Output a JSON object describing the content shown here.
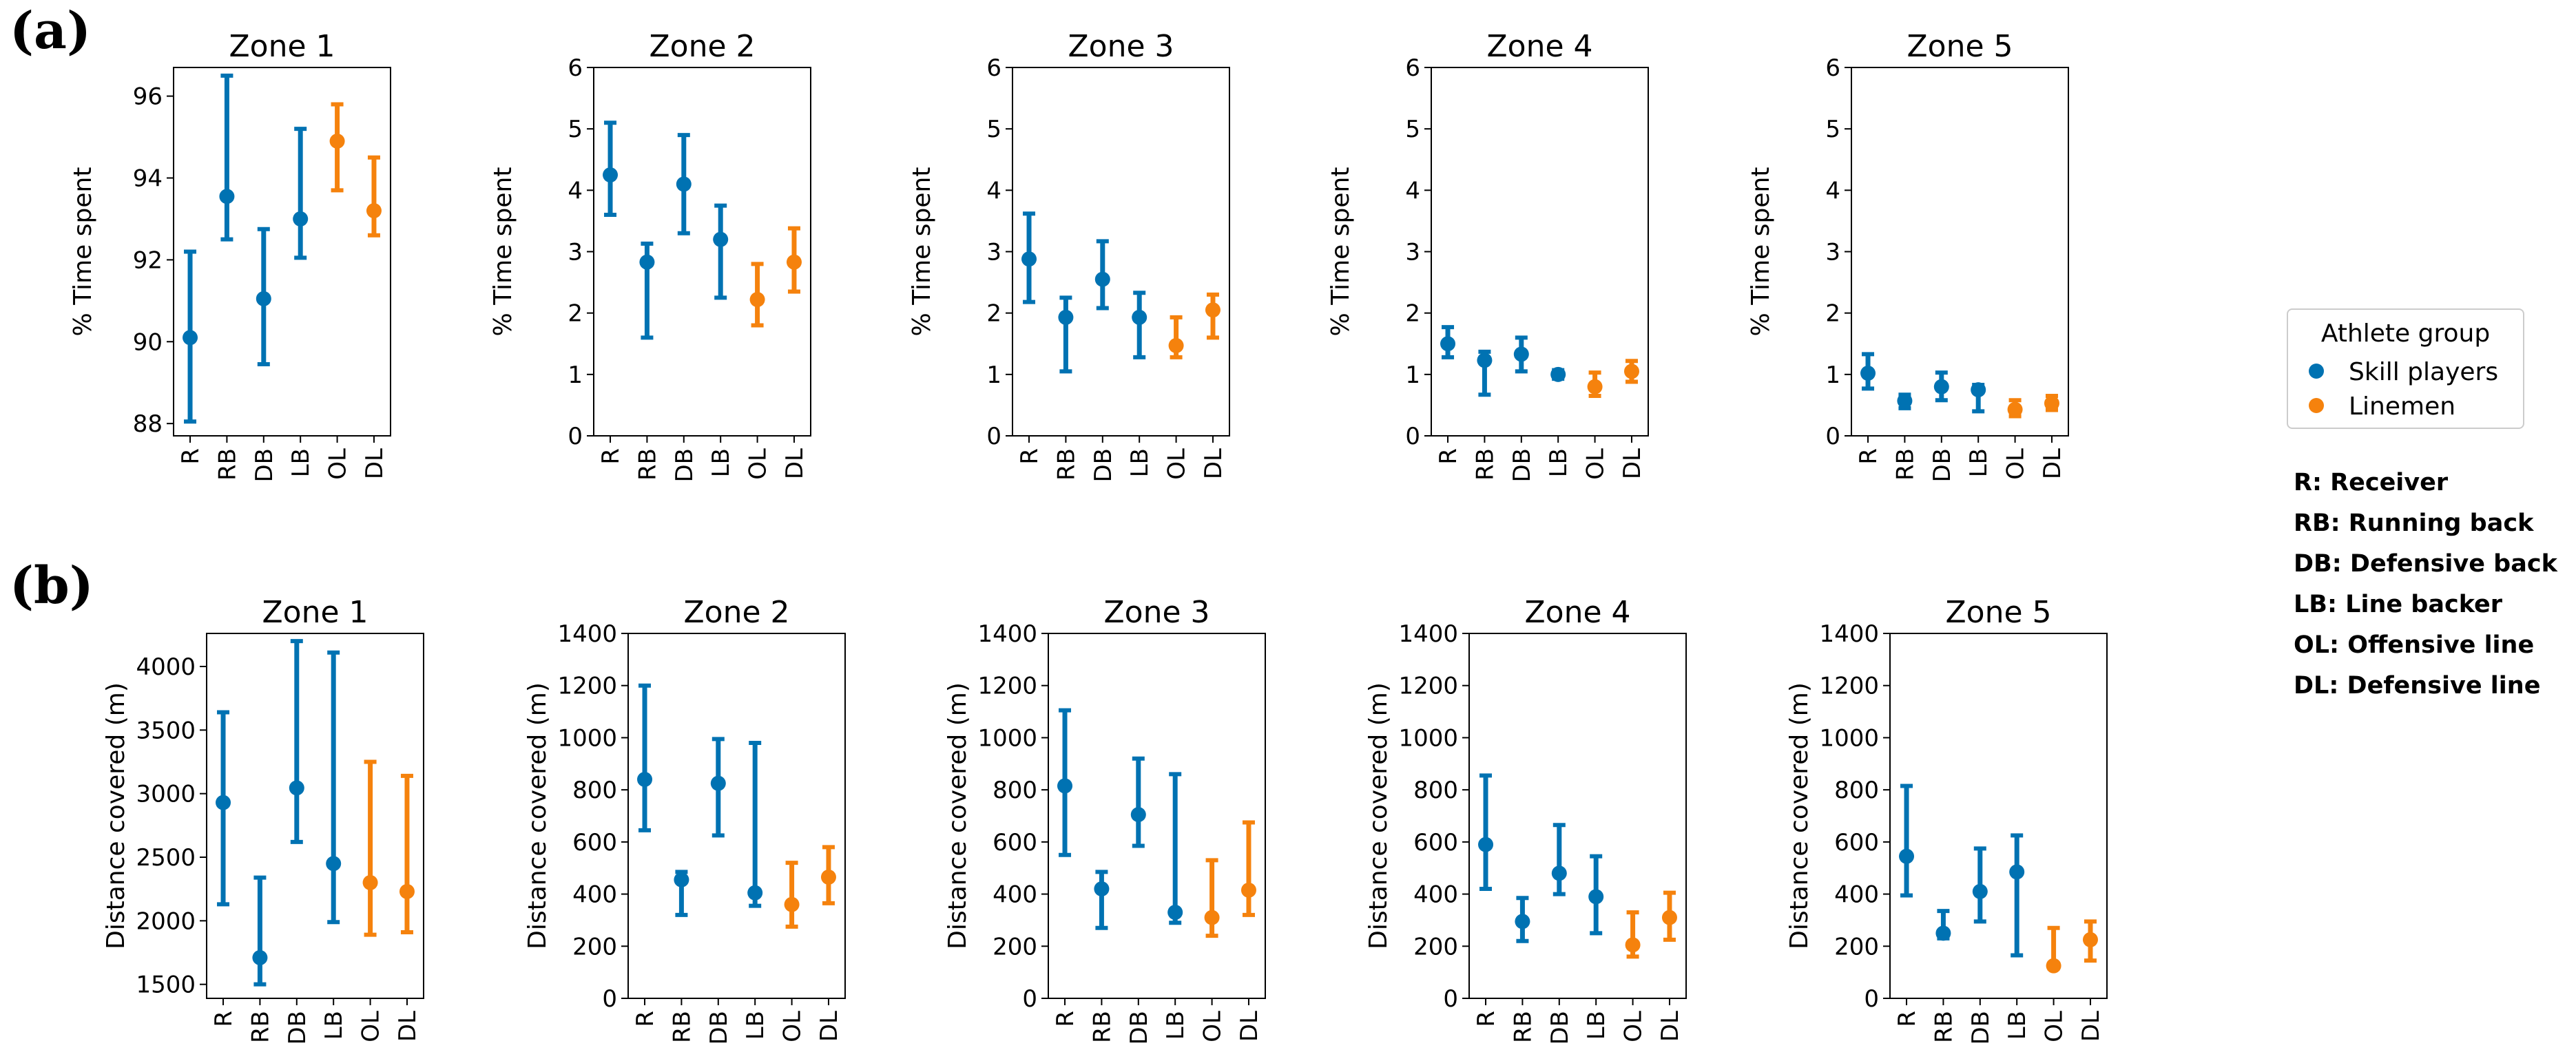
{
  "panel_labels": {
    "a": "(a)",
    "b": "(b)"
  },
  "legend": {
    "title": "Athlete group",
    "items": [
      {
        "label": "Skill players",
        "color": "#0072b2"
      },
      {
        "label": "Linemen",
        "color": "#f5820d"
      }
    ]
  },
  "abbreviations": [
    "R: Receiver",
    "RB: Running back",
    "DB: Defensive back",
    "LB: Line backer",
    "OL: Offensive line",
    "DL: Defensive line"
  ],
  "colors": {
    "skill": "#0072b2",
    "linemen": "#f5820d"
  },
  "chart_data": [
    {
      "type": "scatter",
      "title": "Zone 1",
      "ylabel": "% Time spent",
      "categories": [
        "R",
        "RB",
        "DB",
        "LB",
        "OL",
        "DL"
      ],
      "groups": [
        "skill",
        "skill",
        "skill",
        "skill",
        "linemen",
        "linemen"
      ],
      "values": [
        90.1,
        93.55,
        91.05,
        93.0,
        94.9,
        93.2
      ],
      "lower": [
        88.05,
        92.5,
        89.45,
        92.05,
        93.7,
        92.6
      ],
      "upper": [
        92.2,
        96.5,
        92.75,
        95.2,
        95.8,
        94.5
      ],
      "ylim": [
        87.7,
        96.7
      ],
      "yticks": [
        88,
        90,
        92,
        94,
        96
      ]
    },
    {
      "type": "scatter",
      "title": "Zone 2",
      "ylabel": "% Time spent",
      "categories": [
        "R",
        "RB",
        "DB",
        "LB",
        "OL",
        "DL"
      ],
      "groups": [
        "skill",
        "skill",
        "skill",
        "skill",
        "linemen",
        "linemen"
      ],
      "values": [
        4.25,
        2.83,
        4.1,
        3.2,
        2.22,
        2.83
      ],
      "lower": [
        3.6,
        1.6,
        3.3,
        2.25,
        1.8,
        2.35
      ],
      "upper": [
        5.1,
        3.13,
        4.9,
        3.75,
        2.8,
        3.38
      ],
      "ylim": [
        0,
        6
      ],
      "yticks": [
        0,
        1,
        2,
        3,
        4,
        5,
        6
      ]
    },
    {
      "type": "scatter",
      "title": "Zone 3",
      "ylabel": "% Time spent",
      "categories": [
        "R",
        "RB",
        "DB",
        "LB",
        "OL",
        "DL"
      ],
      "groups": [
        "skill",
        "skill",
        "skill",
        "skill",
        "linemen",
        "linemen"
      ],
      "values": [
        2.88,
        1.93,
        2.55,
        1.93,
        1.47,
        2.05
      ],
      "lower": [
        2.18,
        1.05,
        2.08,
        1.28,
        1.28,
        1.6
      ],
      "upper": [
        3.62,
        2.25,
        3.17,
        2.33,
        1.93,
        2.3
      ],
      "ylim": [
        0,
        6
      ],
      "yticks": [
        0,
        1,
        2,
        3,
        4,
        5,
        6
      ]
    },
    {
      "type": "scatter",
      "title": "Zone 4",
      "ylabel": "% Time spent",
      "categories": [
        "R",
        "RB",
        "DB",
        "LB",
        "OL",
        "DL"
      ],
      "groups": [
        "skill",
        "skill",
        "skill",
        "skill",
        "linemen",
        "linemen"
      ],
      "values": [
        1.5,
        1.23,
        1.33,
        1.0,
        0.8,
        1.05
      ],
      "lower": [
        1.28,
        0.67,
        1.05,
        0.93,
        0.65,
        0.88
      ],
      "upper": [
        1.77,
        1.37,
        1.6,
        1.07,
        1.03,
        1.22
      ],
      "ylim": [
        0,
        6
      ],
      "yticks": [
        0,
        1,
        2,
        3,
        4,
        5,
        6
      ]
    },
    {
      "type": "scatter",
      "title": "Zone 5",
      "ylabel": "% Time spent",
      "categories": [
        "R",
        "RB",
        "DB",
        "LB",
        "OL",
        "DL"
      ],
      "groups": [
        "skill",
        "skill",
        "skill",
        "skill",
        "linemen",
        "linemen"
      ],
      "values": [
        1.02,
        0.57,
        0.8,
        0.75,
        0.43,
        0.53
      ],
      "lower": [
        0.77,
        0.45,
        0.58,
        0.4,
        0.32,
        0.42
      ],
      "upper": [
        1.33,
        0.67,
        1.03,
        0.83,
        0.58,
        0.65
      ],
      "ylim": [
        0,
        6
      ],
      "yticks": [
        0,
        1,
        2,
        3,
        4,
        5,
        6
      ]
    },
    {
      "type": "scatter",
      "title": "Zone 1",
      "ylabel": "Distance covered (m)",
      "categories": [
        "R",
        "RB",
        "DB",
        "LB",
        "OL",
        "DL"
      ],
      "groups": [
        "skill",
        "skill",
        "skill",
        "skill",
        "linemen",
        "linemen"
      ],
      "values": [
        2930,
        1710,
        3045,
        2450,
        2300,
        2230
      ],
      "lower": [
        2130,
        1500,
        2620,
        1990,
        1890,
        1910
      ],
      "upper": [
        3640,
        2340,
        4200,
        4110,
        3250,
        3140
      ],
      "ylim": [
        1390,
        4260
      ],
      "yticks": [
        1500,
        2000,
        2500,
        3000,
        3500,
        4000
      ]
    },
    {
      "type": "scatter",
      "title": "Zone 2",
      "ylabel": "Distance covered (m)",
      "categories": [
        "R",
        "RB",
        "DB",
        "LB",
        "OL",
        "DL"
      ],
      "groups": [
        "skill",
        "skill",
        "skill",
        "skill",
        "linemen",
        "linemen"
      ],
      "values": [
        840,
        455,
        825,
        405,
        360,
        465
      ],
      "lower": [
        645,
        320,
        625,
        355,
        275,
        365
      ],
      "upper": [
        1200,
        485,
        995,
        980,
        520,
        580
      ],
      "ylim": [
        0,
        1400
      ],
      "yticks": [
        0,
        200,
        400,
        600,
        800,
        1000,
        1200,
        1400
      ]
    },
    {
      "type": "scatter",
      "title": "Zone 3",
      "ylabel": "Distance covered (m)",
      "categories": [
        "R",
        "RB",
        "DB",
        "LB",
        "OL",
        "DL"
      ],
      "groups": [
        "skill",
        "skill",
        "skill",
        "skill",
        "linemen",
        "linemen"
      ],
      "values": [
        815,
        420,
        705,
        330,
        310,
        415
      ],
      "lower": [
        550,
        270,
        585,
        290,
        240,
        320
      ],
      "upper": [
        1105,
        485,
        920,
        860,
        530,
        675
      ],
      "ylim": [
        0,
        1400
      ],
      "yticks": [
        0,
        200,
        400,
        600,
        800,
        1000,
        1200,
        1400
      ]
    },
    {
      "type": "scatter",
      "title": "Zone 4",
      "ylabel": "Distance covered (m)",
      "categories": [
        "R",
        "RB",
        "DB",
        "LB",
        "OL",
        "DL"
      ],
      "groups": [
        "skill",
        "skill",
        "skill",
        "skill",
        "linemen",
        "linemen"
      ],
      "values": [
        590,
        295,
        480,
        390,
        205,
        310
      ],
      "lower": [
        420,
        220,
        400,
        250,
        160,
        225
      ],
      "upper": [
        855,
        385,
        665,
        545,
        330,
        405
      ],
      "ylim": [
        0,
        1400
      ],
      "yticks": [
        0,
        200,
        400,
        600,
        800,
        1000,
        1200,
        1400
      ]
    },
    {
      "type": "scatter",
      "title": "Zone 5",
      "ylabel": "Distance covered (m)",
      "categories": [
        "R",
        "RB",
        "DB",
        "LB",
        "OL",
        "DL"
      ],
      "groups": [
        "skill",
        "skill",
        "skill",
        "skill",
        "linemen",
        "linemen"
      ],
      "values": [
        545,
        250,
        410,
        485,
        125,
        225
      ],
      "lower": [
        395,
        230,
        295,
        165,
        115,
        145
      ],
      "upper": [
        815,
        335,
        575,
        625,
        270,
        295
      ],
      "ylim": [
        0,
        1400
      ],
      "yticks": [
        0,
        200,
        400,
        600,
        800,
        1000,
        1200,
        1400
      ]
    }
  ]
}
